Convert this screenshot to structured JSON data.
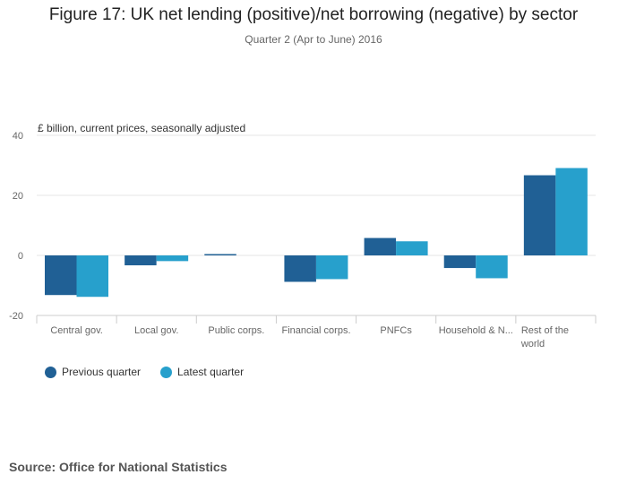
{
  "title": "Figure 17: UK net lending (positive)/net borrowing (negative) by sector",
  "subtitle": "Quarter 2 (Apr to June) 2016",
  "units_label": "£ billion, current prices, seasonally adjusted",
  "source": "Source: Office for National Statistics",
  "colors": {
    "previous": "#206095",
    "latest": "#27a0cc",
    "grid": "#e6e6e6",
    "axis": "#cccccc",
    "tick_text": "#666666"
  },
  "chart_data": {
    "type": "bar",
    "title": "Figure 17: UK net lending (positive)/net borrowing (negative) by sector",
    "subtitle": "Quarter 2 (Apr to June) 2016",
    "xlabel": "",
    "ylabel": "£ billion, current prices, seasonally adjusted",
    "ylim": [
      -20,
      40
    ],
    "yticks": [
      40,
      20,
      0,
      -20
    ],
    "grid": true,
    "legend_position": "bottom-left",
    "categories": [
      [
        "Central gov."
      ],
      [
        "Local gov."
      ],
      [
        "Public corps."
      ],
      [
        "Financial corps."
      ],
      [
        "PNFCs"
      ],
      [
        "Household & N..."
      ],
      [
        "Rest of the",
        "world"
      ]
    ],
    "series": [
      {
        "name": "Previous quarter",
        "color_key": "previous",
        "values": [
          -13.2,
          -3.3,
          0.4,
          -8.8,
          5.8,
          -4.2,
          26.7
        ]
      },
      {
        "name": "Latest quarter",
        "color_key": "latest",
        "values": [
          -13.8,
          -1.9,
          0.0,
          -7.9,
          4.7,
          -7.6,
          29.1
        ]
      }
    ]
  }
}
